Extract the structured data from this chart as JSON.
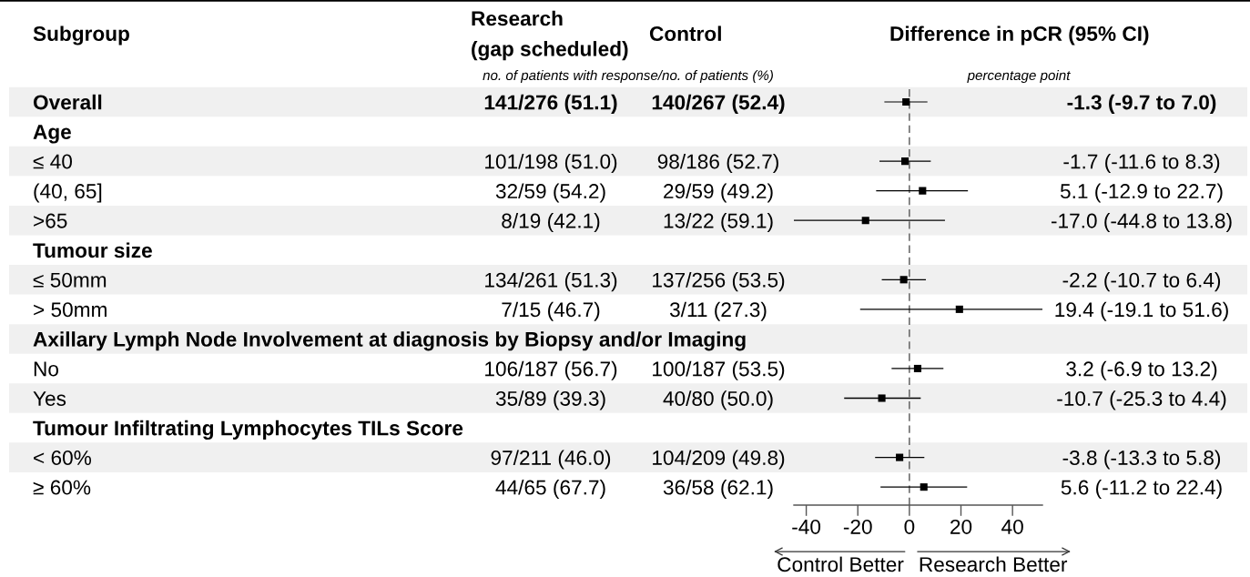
{
  "chart_data": {
    "type": "scatter",
    "orientation": "horizontal",
    "title": "Difference in pCR (95% CI)",
    "subtitle": "percentage point",
    "ylabel": "Subgroup",
    "categories": [
      "Overall",
      "Age",
      "≤ 40",
      "(40, 65]",
      ">65",
      "Tumour size",
      "≤ 50mm",
      "> 50mm",
      "Axillary Lymph Node Involvement at diagnosis by Biopsy and/or Imaging",
      "No",
      "Yes",
      "Tumour Infiltrating Lymphocytes TILs Score",
      "< 60%",
      "≥ 60%"
    ],
    "values": [
      -1.3,
      null,
      -1.7,
      5.1,
      -17.0,
      null,
      -2.2,
      19.4,
      null,
      3.2,
      -10.7,
      null,
      -3.8,
      5.6
    ],
    "errors": [
      [
        -9.7,
        7.0
      ],
      null,
      [
        -11.6,
        8.3
      ],
      [
        -12.9,
        22.7
      ],
      [
        -44.8,
        13.8
      ],
      null,
      [
        -10.7,
        6.4
      ],
      [
        -19.1,
        51.6
      ],
      null,
      [
        -6.9,
        13.2
      ],
      [
        -25.3,
        4.4
      ],
      null,
      [
        -13.3,
        5.8
      ],
      [
        -11.2,
        22.4
      ]
    ],
    "color": "#000000",
    "marker": "square",
    "xlim": [
      -44.8,
      51.6
    ],
    "xticks": [
      -40,
      -20,
      0,
      20,
      40
    ],
    "ref_lines": [
      {
        "axis": "x",
        "value": 0,
        "color": "#555555",
        "line_style": "dashed"
      }
    ],
    "annotations": [
      "Research\n(gap scheduled)",
      "Control",
      "no. of patients with response/no. of patients (%)",
      "141/276 (51.1)",
      "140/267 (52.4)",
      "-1.3 (-9.7 to 7.0)",
      "101/198 (51.0)",
      "98/186 (52.7)",
      "-1.7 (-11.6 to 8.3)",
      "32/59 (54.2)",
      "29/59 (49.2)",
      "5.1 (-12.9 to 22.7)",
      "8/19 (42.1)",
      "13/22 (59.1)",
      "-17.0 (-44.8 to 13.8)",
      "134/261 (51.3)",
      "137/256 (53.5)",
      "-2.2 (-10.7 to 6.4)",
      "7/15 (46.7)",
      "3/11 (27.3)",
      "19.4 (-19.1 to 51.6)",
      "106/187 (56.7)",
      "100/187 (53.5)",
      "3.2 (-6.9 to 13.2)",
      "35/89 (39.3)",
      "40/80 (50.0)",
      "-10.7 (-25.3 to 4.4)",
      "97/211 (46.0)",
      "104/209 (49.8)",
      "-3.8 (-13.3 to 5.8)",
      "44/65 (67.7)",
      "36/58 (62.1)",
      "5.6 (-11.2 to 22.4)",
      "Control Better",
      "Research Better"
    ]
  }
}
